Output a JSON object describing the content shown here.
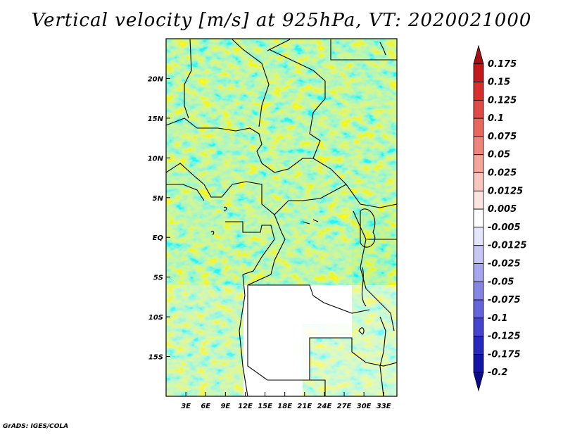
{
  "title": "Vertical velocity [m/s] at 925hPa, VT: 2020021000",
  "footer": "GrADS: IGES/COLA",
  "map": {
    "lon_range": [
      0,
      35
    ],
    "lat_range": [
      -20,
      25
    ],
    "lon_ticks": [
      "3E",
      "6E",
      "9E",
      "12E",
      "15E",
      "18E",
      "21E",
      "24E",
      "27E",
      "30E",
      "33E"
    ],
    "lat_ticks": [
      "20N",
      "15N",
      "10N",
      "5N",
      "EQ",
      "5S",
      "10S",
      "15S"
    ]
  },
  "colorbar": {
    "labels": [
      "0.175",
      "0.15",
      "0.125",
      "0.1",
      "0.075",
      "0.05",
      "0.025",
      "0.0125",
      "0.005",
      "-0.005",
      "-0.0125",
      "-0.025",
      "-0.05",
      "-0.075",
      "-0.1",
      "-0.125",
      "-0.175",
      "-0.2"
    ],
    "colors": [
      "#a50f15",
      "#c4181f",
      "#d8302e",
      "#e24a45",
      "#e8675f",
      "#ee857c",
      "#f4a59c",
      "#f8c5bf",
      "#fce4e0",
      "#ffffff",
      "#e4e4fb",
      "#c6c6f5",
      "#a6a6ef",
      "#8585e6",
      "#6464dc",
      "#4444d0",
      "#2828c0",
      "#1414a8",
      "#0a0a8c"
    ]
  }
}
